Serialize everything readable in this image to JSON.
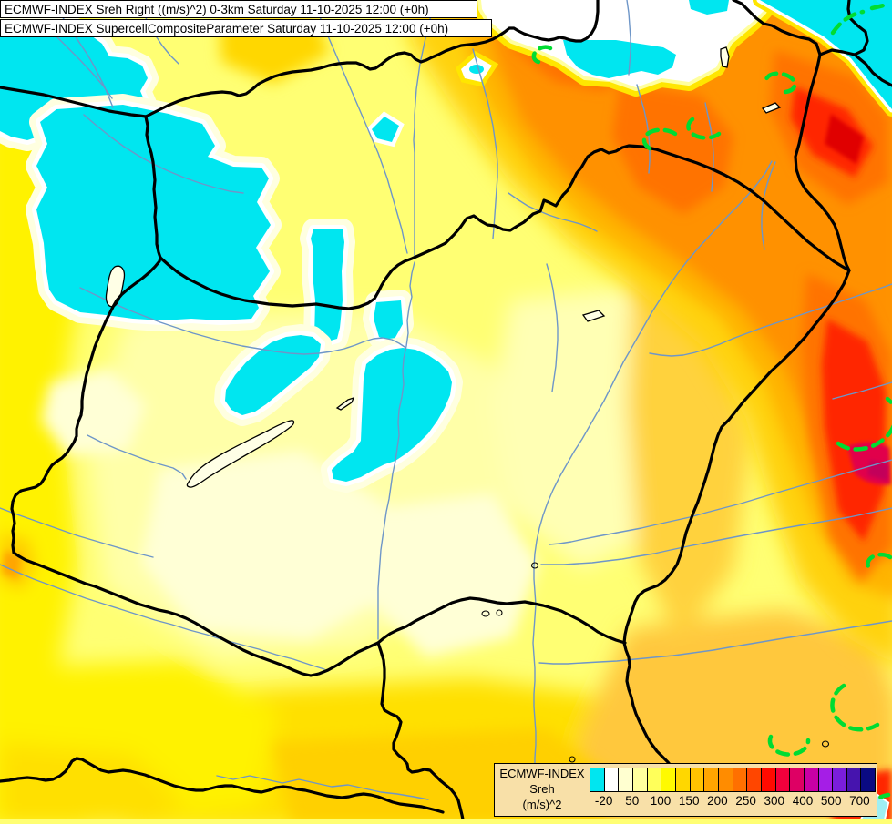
{
  "titles": {
    "line1": "ECMWF-INDEX Sreh Right ((m/s)^2) 0-3km Saturday 11-10-2025 12:00 (+0h)",
    "line2": "ECMWF-INDEX SupercellCompositeParameter Saturday 11-10-2025 12:00 (+0h)"
  },
  "legend": {
    "model_label": "ECMWF-INDEX",
    "param_label": "Sreh",
    "unit_label": "(m/s)^2",
    "tick_values": [
      "-20",
      "50",
      "100",
      "150",
      "200",
      "250",
      "300",
      "400",
      "500",
      "700"
    ],
    "cell_colors": [
      "#00E6F0",
      "#FFFFFF",
      "#FFFFD0",
      "#FFFF9E",
      "#FFFF5A",
      "#FFFA00",
      "#FFD700",
      "#FFC300",
      "#FFA500",
      "#FF8C00",
      "#FF7000",
      "#FF4600",
      "#FF0A00",
      "#F2003C",
      "#DE0064",
      "#C800A5",
      "#A51EE6",
      "#7A1EDC",
      "#4614AE",
      "#0A0A82"
    ]
  },
  "map": {
    "background_color": "#FFFF73",
    "border_color": "#000000",
    "river_color": "#6E96C8",
    "scp_contour_color": "#00DC32",
    "negative_area_color": "#00E6F0",
    "hot_area_color": "#FF2800"
  }
}
